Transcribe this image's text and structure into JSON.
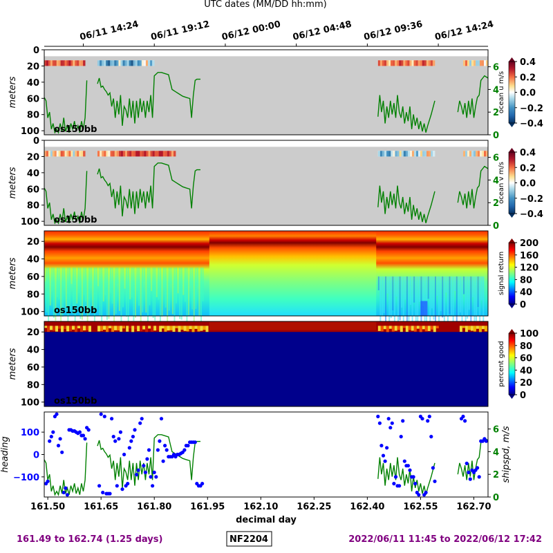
{
  "top_axis_title": "UTC dates (MM/DD hh:mm)",
  "top_axis_ticks": [
    {
      "day": 161.6,
      "label": "06/11 14:24"
    },
    {
      "day": 161.8,
      "label": "06/11 19:12"
    },
    {
      "day": 162.0,
      "label": "06/12 00:00"
    },
    {
      "day": 162.2,
      "label": "06/12 04:48"
    },
    {
      "day": 162.4,
      "label": "06/12 09:36"
    },
    {
      "day": 162.6,
      "label": "06/12 14:24"
    }
  ],
  "footer": {
    "left": "161.49 to 162.74 (1.25 days)",
    "center": "NF2204",
    "right": "2022/06/11 11:45 to 2022/06/12 17:42"
  },
  "colors": {
    "purple": "#800080",
    "green": "#008000",
    "blue": "#0000ff",
    "nodata": "#cccccc"
  },
  "chart_data": [
    {
      "type": "heatmap",
      "name": "ocean-u",
      "ylabel": "meters",
      "yticks": [
        0,
        20,
        40,
        60,
        80,
        100
      ],
      "ylim": [
        105,
        0
      ],
      "xlim": [
        161.49,
        162.74
      ],
      "instrument": "os150bb",
      "colorbar": {
        "label": "ocean u m/s",
        "ticks": [
          "0.4",
          "0.2",
          "0.0",
          "−0.2",
          "−0.4"
        ],
        "range": [
          -0.4,
          0.4
        ],
        "cmap": "rdbu"
      },
      "right_axis": {
        "label": "",
        "ticks": [
          "6",
          "4",
          "2",
          "0"
        ],
        "range": [
          0,
          7.5
        ]
      },
      "shallow_band": {
        "top_m": 13,
        "bottom_m": 20
      },
      "segments": [
        [
          161.49,
          161.605,
          0.25
        ],
        [
          161.64,
          161.77,
          -0.15
        ],
        [
          161.77,
          161.8,
          -0.05
        ],
        [
          162.43,
          162.59,
          0.2
        ],
        [
          162.67,
          162.74,
          0.05
        ]
      ]
    },
    {
      "type": "heatmap",
      "name": "ocean-v",
      "ylabel": "meters",
      "yticks": [
        0,
        20,
        40,
        60,
        80,
        100
      ],
      "ylim": [
        105,
        0
      ],
      "xlim": [
        161.49,
        162.74
      ],
      "instrument": "os150bb",
      "colorbar": {
        "label": "ocean v m/s",
        "ticks": [
          "0.4",
          "0.2",
          "0.0",
          "−0.2",
          "−0.4"
        ],
        "range": [
          -0.4,
          0.4
        ],
        "cmap": "rdbu"
      },
      "right_axis": {
        "label": "",
        "ticks": [
          "6",
          "4",
          "2",
          "0"
        ],
        "range": [
          0,
          7.5
        ]
      },
      "shallow_band": {
        "top_m": 13,
        "bottom_m": 20
      },
      "segments": [
        [
          161.49,
          161.605,
          0.1
        ],
        [
          161.64,
          161.7,
          0.15
        ],
        [
          161.7,
          161.86,
          0.3
        ],
        [
          162.43,
          162.52,
          -0.1
        ],
        [
          162.52,
          162.59,
          0.0
        ],
        [
          162.67,
          162.74,
          0.05
        ]
      ]
    },
    {
      "type": "heatmap",
      "name": "signal-return",
      "ylabel": "meters",
      "yticks": [
        20,
        40,
        60,
        80,
        100
      ],
      "ylim": [
        105,
        8
      ],
      "xlim": [
        161.49,
        162.74
      ],
      "instrument": "os150bb",
      "colorbar": {
        "label": "signal return",
        "ticks": [
          "200",
          "160",
          "120",
          "80",
          "40",
          "0"
        ],
        "range": [
          0,
          210
        ],
        "cmap": "jet"
      }
    },
    {
      "type": "heatmap",
      "name": "percent-good",
      "ylabel": "meters",
      "yticks": [
        20,
        40,
        60,
        80,
        100
      ],
      "ylim": [
        105,
        8
      ],
      "xlim": [
        161.49,
        162.74
      ],
      "instrument": "os150bb",
      "colorbar": {
        "label": "percent good",
        "ticks": [
          "100",
          "80",
          "60",
          "40",
          "20",
          "0"
        ],
        "range": [
          0,
          100
        ],
        "cmap": "jet"
      }
    },
    {
      "type": "scatter",
      "name": "heading-shipspd",
      "xlabel": "decimal day",
      "xticks": [
        161.5,
        161.65,
        161.8,
        161.95,
        162.1,
        162.25,
        162.4,
        162.55,
        162.7
      ],
      "xlim": [
        161.49,
        162.74
      ],
      "left_axis": {
        "label": "heading",
        "ticks": [
          100,
          0,
          -100
        ],
        "range": [
          -190,
          190
        ]
      },
      "right_axis": {
        "label": "shipspd, m/s",
        "ticks": [
          6,
          4,
          2,
          0
        ],
        "range": [
          0,
          7.5
        ]
      },
      "heading": [
        [
          161.495,
          -130
        ],
        [
          161.5,
          -120
        ],
        [
          161.505,
          60
        ],
        [
          161.51,
          80
        ],
        [
          161.515,
          100
        ],
        [
          161.52,
          170
        ],
        [
          161.525,
          180
        ],
        [
          161.53,
          40
        ],
        [
          161.535,
          70
        ],
        [
          161.54,
          10
        ],
        [
          161.545,
          -170
        ],
        [
          161.55,
          -150
        ],
        [
          161.555,
          -180
        ],
        [
          161.56,
          110
        ],
        [
          161.565,
          110
        ],
        [
          161.57,
          105
        ],
        [
          161.575,
          105
        ],
        [
          161.58,
          100
        ],
        [
          161.585,
          95
        ],
        [
          161.59,
          100
        ],
        [
          161.595,
          85
        ],
        [
          161.6,
          85
        ],
        [
          161.605,
          70
        ],
        [
          161.61,
          120
        ],
        [
          161.615,
          110
        ],
        [
          161.645,
          -140
        ],
        [
          161.65,
          180
        ],
        [
          161.655,
          -170
        ],
        [
          161.66,
          170
        ],
        [
          161.665,
          -175
        ],
        [
          161.67,
          -175
        ],
        [
          161.675,
          -175
        ],
        [
          161.68,
          160
        ],
        [
          161.685,
          80
        ],
        [
          161.69,
          60
        ],
        [
          161.695,
          -140
        ],
        [
          161.7,
          70
        ],
        [
          161.705,
          100
        ],
        [
          161.71,
          -155
        ],
        [
          161.715,
          0
        ],
        [
          161.72,
          -140
        ],
        [
          161.725,
          -130
        ],
        [
          161.73,
          30
        ],
        [
          161.735,
          60
        ],
        [
          161.74,
          80
        ],
        [
          161.745,
          110
        ],
        [
          161.75,
          -90
        ],
        [
          161.755,
          -70
        ],
        [
          161.76,
          140
        ],
        [
          161.765,
          160
        ],
        [
          161.77,
          -50
        ],
        [
          161.775,
          -80
        ],
        [
          161.78,
          -20
        ],
        [
          161.785,
          20
        ],
        [
          161.79,
          -100
        ],
        [
          161.795,
          -140
        ],
        [
          161.8,
          -80
        ],
        [
          161.805,
          -100
        ],
        [
          161.81,
          20
        ],
        [
          161.815,
          60
        ],
        [
          161.82,
          160
        ],
        [
          161.825,
          -30
        ],
        [
          161.83,
          40
        ],
        [
          161.835,
          20
        ],
        [
          161.84,
          -10
        ],
        [
          161.845,
          -10
        ],
        [
          161.85,
          -10
        ],
        [
          161.855,
          0
        ],
        [
          161.86,
          -10
        ],
        [
          161.865,
          0
        ],
        [
          161.87,
          0
        ],
        [
          161.875,
          5
        ],
        [
          161.88,
          10
        ],
        [
          161.885,
          20
        ],
        [
          161.89,
          40
        ],
        [
          161.895,
          40
        ],
        [
          161.9,
          55
        ],
        [
          161.905,
          55
        ],
        [
          161.91,
          55
        ],
        [
          161.915,
          55
        ],
        [
          161.92,
          -130
        ],
        [
          161.925,
          -140
        ],
        [
          161.93,
          -140
        ],
        [
          161.935,
          -130
        ],
        [
          162.43,
          170
        ],
        [
          162.435,
          140
        ],
        [
          162.44,
          40
        ],
        [
          162.445,
          -5
        ],
        [
          162.45,
          -30
        ],
        [
          162.455,
          30
        ],
        [
          162.46,
          160
        ],
        [
          162.465,
          120
        ],
        [
          162.47,
          140
        ],
        [
          162.475,
          -130
        ],
        [
          162.48,
          -100
        ],
        [
          162.485,
          -140
        ],
        [
          162.49,
          -140
        ],
        [
          162.495,
          80
        ],
        [
          162.5,
          150
        ],
        [
          162.505,
          -30
        ],
        [
          162.51,
          -50
        ],
        [
          162.515,
          -50
        ],
        [
          162.52,
          -70
        ],
        [
          162.525,
          -100
        ],
        [
          162.53,
          -100
        ],
        [
          162.535,
          -130
        ],
        [
          162.54,
          -170
        ],
        [
          162.545,
          -180
        ],
        [
          162.55,
          170
        ],
        [
          162.555,
          160
        ],
        [
          162.56,
          -180
        ],
        [
          162.565,
          -170
        ],
        [
          162.57,
          150
        ],
        [
          162.575,
          170
        ],
        [
          162.58,
          80
        ],
        [
          162.585,
          -60
        ],
        [
          162.59,
          -120
        ],
        [
          162.665,
          160
        ],
        [
          162.67,
          170
        ],
        [
          162.675,
          150
        ],
        [
          162.68,
          -40
        ],
        [
          162.685,
          -80
        ],
        [
          162.69,
          -110
        ],
        [
          162.695,
          -70
        ],
        [
          162.7,
          -80
        ],
        [
          162.705,
          -70
        ],
        [
          162.71,
          -60
        ],
        [
          162.715,
          -100
        ],
        [
          162.72,
          60
        ],
        [
          162.725,
          60
        ],
        [
          162.73,
          70
        ],
        [
          162.735,
          60
        ]
      ]
    }
  ],
  "shipspd_segments": [
    [
      [
        161.49,
        3.3
      ],
      [
        161.495,
        3.0
      ],
      [
        161.5,
        1.5
      ],
      [
        161.505,
        2.0
      ],
      [
        161.51,
        0.5
      ],
      [
        161.515,
        1.0
      ],
      [
        161.52,
        0.2
      ],
      [
        161.525,
        0.5
      ],
      [
        161.53,
        0.2
      ],
      [
        161.535,
        1.0
      ],
      [
        161.54,
        0.3
      ],
      [
        161.545,
        1.5
      ],
      [
        161.55,
        0.3
      ],
      [
        161.555,
        0.8
      ],
      [
        161.56,
        0.2
      ],
      [
        161.565,
        1.0
      ],
      [
        161.57,
        0.5
      ],
      [
        161.575,
        1.2
      ],
      [
        161.58,
        0.3
      ],
      [
        161.585,
        0.8
      ],
      [
        161.59,
        0.2
      ],
      [
        161.595,
        1.2
      ],
      [
        161.6,
        0.5
      ],
      [
        161.605,
        1.5
      ],
      [
        161.61,
        4.8
      ]
    ],
    [
      [
        161.64,
        4.5
      ],
      [
        161.645,
        5.0
      ],
      [
        161.65,
        4.2
      ],
      [
        161.655,
        4.3
      ],
      [
        161.66,
        4.0
      ],
      [
        161.665,
        3.8
      ],
      [
        161.67,
        3.5
      ],
      [
        161.675,
        3.7
      ],
      [
        161.68,
        2.5
      ],
      [
        161.685,
        3.2
      ],
      [
        161.69,
        1.5
      ],
      [
        161.695,
        3.0
      ],
      [
        161.7,
        1.8
      ],
      [
        161.705,
        3.5
      ],
      [
        161.71,
        0.8
      ],
      [
        161.715,
        2.5
      ],
      [
        161.72,
        2.2
      ],
      [
        161.725,
        1.5
      ],
      [
        161.73,
        3.2
      ],
      [
        161.735,
        1.5
      ],
      [
        161.74,
        3.0
      ],
      [
        161.745,
        1.0
      ],
      [
        161.75,
        3.0
      ],
      [
        161.755,
        1.5
      ],
      [
        161.76,
        3.2
      ],
      [
        161.765,
        2.0
      ],
      [
        161.77,
        3.0
      ],
      [
        161.775,
        1.5
      ],
      [
        161.78,
        3.0
      ],
      [
        161.785,
        2.0
      ],
      [
        161.79,
        3.5
      ],
      [
        161.795,
        1.5
      ],
      [
        161.8,
        5.2
      ],
      [
        161.81,
        5.5
      ],
      [
        161.82,
        5.5
      ],
      [
        161.83,
        5.4
      ],
      [
        161.84,
        5.3
      ],
      [
        161.85,
        4.0
      ],
      [
        161.86,
        3.8
      ],
      [
        161.87,
        3.6
      ],
      [
        161.88,
        3.4
      ],
      [
        161.89,
        3.3
      ],
      [
        161.9,
        3.2
      ],
      [
        161.905,
        1.5
      ],
      [
        161.91,
        3.5
      ],
      [
        161.915,
        4.8
      ],
      [
        161.92,
        4.9
      ],
      [
        161.93,
        4.9
      ]
    ],
    [
      [
        162.43,
        1.6
      ],
      [
        162.435,
        3.5
      ],
      [
        162.44,
        2.0
      ],
      [
        162.445,
        3.0
      ],
      [
        162.45,
        1.0
      ],
      [
        162.455,
        2.5
      ],
      [
        162.46,
        1.5
      ],
      [
        162.465,
        3.0
      ],
      [
        162.47,
        1.8
      ],
      [
        162.475,
        2.8
      ],
      [
        162.48,
        1.5
      ],
      [
        162.485,
        3.5
      ],
      [
        162.49,
        2.0
      ],
      [
        162.495,
        1.5
      ],
      [
        162.5,
        2.5
      ],
      [
        162.505,
        1.0
      ],
      [
        162.51,
        2.0
      ],
      [
        162.515,
        1.2
      ],
      [
        162.52,
        2.5
      ],
      [
        162.525,
        0.5
      ],
      [
        162.53,
        1.8
      ],
      [
        162.535,
        0.8
      ],
      [
        162.54,
        1.5
      ],
      [
        162.545,
        0.5
      ],
      [
        162.55,
        1.2
      ],
      [
        162.555,
        0.3
      ],
      [
        162.56,
        1.0
      ],
      [
        162.565,
        0.2
      ],
      [
        162.57,
        0.8
      ],
      [
        162.58,
        1.8
      ],
      [
        162.59,
        3.0
      ]
    ],
    [
      [
        162.655,
        2.0
      ],
      [
        162.66,
        3.0
      ],
      [
        162.665,
        2.5
      ],
      [
        162.67,
        1.8
      ],
      [
        162.675,
        2.8
      ],
      [
        162.68,
        1.5
      ],
      [
        162.685,
        3.0
      ],
      [
        162.69,
        1.8
      ],
      [
        162.695,
        3.2
      ],
      [
        162.7,
        1.5
      ],
      [
        162.705,
        2.5
      ],
      [
        162.71,
        3.3
      ],
      [
        162.715,
        3.5
      ],
      [
        162.72,
        4.8
      ],
      [
        162.725,
        5.0
      ],
      [
        162.73,
        5.2
      ],
      [
        162.74,
        5.0
      ]
    ]
  ]
}
